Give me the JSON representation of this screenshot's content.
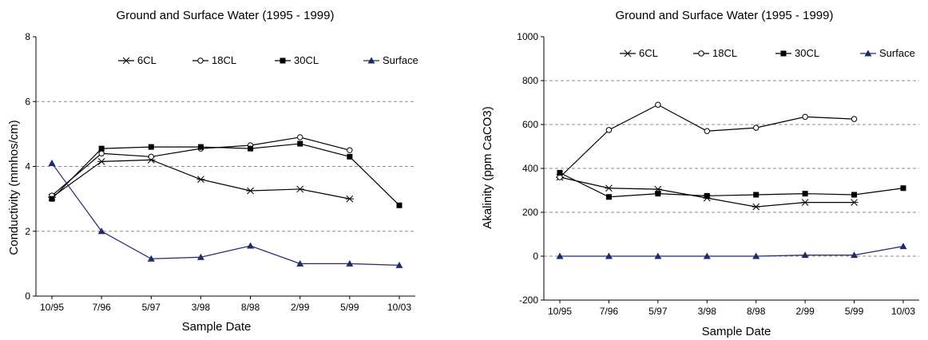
{
  "chart_data": [
    {
      "type": "line",
      "title": "Ground and Surface Water (1995 - 1999)",
      "xlabel": "Sample Date",
      "ylabel": "Conductivity (mmhos/cm)",
      "categories": [
        "10/95",
        "7/96",
        "5/97",
        "3/98",
        "8/98",
        "2/99",
        "5/99",
        "10/03"
      ],
      "ylim": [
        0,
        8
      ],
      "yticks": [
        "0",
        "2",
        "4",
        "6",
        "8"
      ],
      "grid": "horizontal-dashed",
      "legend_position": "top-right",
      "series": [
        {
          "name": "6CL",
          "marker": "asterisk",
          "color": "#000000",
          "values": [
            3.05,
            4.15,
            4.2,
            3.6,
            3.25,
            3.3,
            3.0,
            null
          ]
        },
        {
          "name": "18CL",
          "marker": "open-circle",
          "color": "#000000",
          "values": [
            3.1,
            4.4,
            4.3,
            4.55,
            4.65,
            4.9,
            4.5,
            null
          ]
        },
        {
          "name": "30CL",
          "marker": "filled-square",
          "color": "#000000",
          "values": [
            3.0,
            4.55,
            4.6,
            4.6,
            4.55,
            4.7,
            4.3,
            2.8
          ]
        },
        {
          "name": "Surface",
          "marker": "filled-triangle",
          "color": "#1f2a6b",
          "values": [
            4.1,
            2.0,
            1.15,
            1.2,
            1.55,
            1.0,
            1.0,
            0.95
          ]
        }
      ]
    },
    {
      "type": "line",
      "title": "Ground and Surface Water (1995 - 1999)",
      "xlabel": "Sample Date",
      "ylabel": "Akalinity (ppm CaCO3)",
      "categories": [
        "10/95",
        "7/96",
        "5/97",
        "3/98",
        "8/98",
        "2/99",
        "5/99",
        "10/03"
      ],
      "ylim": [
        -200,
        1000
      ],
      "yticks": [
        "-200",
        "0",
        "200",
        "400",
        "600",
        "800",
        "1000"
      ],
      "grid": "horizontal-dashed",
      "legend_position": "top-right",
      "series": [
        {
          "name": "6CL",
          "marker": "asterisk",
          "color": "#000000",
          "values": [
            360,
            310,
            305,
            265,
            225,
            245,
            245,
            null
          ]
        },
        {
          "name": "18CL",
          "marker": "open-circle",
          "color": "#000000",
          "values": [
            360,
            575,
            690,
            570,
            585,
            635,
            625,
            null
          ]
        },
        {
          "name": "30CL",
          "marker": "filled-square",
          "color": "#000000",
          "values": [
            380,
            270,
            285,
            275,
            280,
            285,
            280,
            310
          ]
        },
        {
          "name": "Surface",
          "marker": "filled-triangle",
          "color": "#1f2a6b",
          "values": [
            0,
            0,
            0,
            0,
            0,
            5,
            5,
            45
          ]
        }
      ]
    }
  ]
}
